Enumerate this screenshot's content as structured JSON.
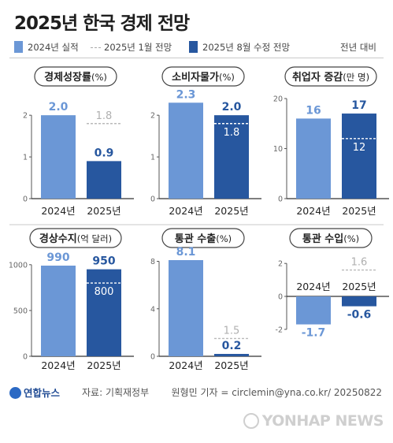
{
  "title": "2025년 한국 경제 전망",
  "legend": {
    "actual": "2024년 실적",
    "jan": "2025년 1월 전망",
    "aug": "2025년 8월 수정 전망",
    "note": "전년 대비"
  },
  "colors": {
    "actual": "#6b97d6",
    "aug": "#27579f",
    "jan_line": "#b9b9b9"
  },
  "chart_data": [
    {
      "type": "bar",
      "title": "경제성장률",
      "unit": "(%)",
      "categories": [
        "2024년",
        "2025년"
      ],
      "actual": 2.0,
      "revised": 0.9,
      "january": 1.8,
      "value_labels": [
        "2.0",
        "0.9"
      ],
      "january_label": "1.8",
      "ylim": [
        0,
        2.4
      ],
      "yticks": [
        0,
        1,
        2
      ]
    },
    {
      "type": "bar",
      "title": "소비자물가",
      "unit": "(%)",
      "categories": [
        "2024년",
        "2025년"
      ],
      "actual": 2.3,
      "revised": 2.0,
      "january": 1.8,
      "value_labels": [
        "2.3",
        "2.0"
      ],
      "january_label": "1.8",
      "ylim": [
        0,
        2.4
      ],
      "yticks": [
        0,
        1,
        2
      ]
    },
    {
      "type": "bar",
      "title": "취업자 증감",
      "unit": "(만 명)",
      "categories": [
        "2024년",
        "2025년"
      ],
      "actual": 16,
      "revised": 17,
      "january": 12,
      "value_labels": [
        "16",
        "17"
      ],
      "january_label": "12",
      "ylim": [
        0,
        20
      ],
      "yticks": [
        0,
        10,
        20
      ]
    },
    {
      "type": "bar",
      "title": "경상수지",
      "unit": "(억 달러)",
      "categories": [
        "2024년",
        "2025년"
      ],
      "actual": 990,
      "revised": 950,
      "january": 800,
      "value_labels": [
        "990",
        "950"
      ],
      "january_label": "800",
      "ylim": [
        0,
        1050
      ],
      "yticks": [
        0,
        500,
        1000
      ]
    },
    {
      "type": "bar",
      "title": "통관 수출",
      "unit": "(%)",
      "categories": [
        "2024년",
        "2025년"
      ],
      "actual": 8.1,
      "revised": 0.2,
      "january": 1.5,
      "value_labels": [
        "8.1",
        "0.2"
      ],
      "january_label": "1.5",
      "ylim": [
        0,
        8.1
      ],
      "yticks": [
        0,
        4,
        8
      ]
    },
    {
      "type": "bar",
      "title": "통관 수입",
      "unit": "(%)",
      "categories": [
        "2024년",
        "2025년"
      ],
      "actual": -1.7,
      "revised": -0.6,
      "january": 1.6,
      "value_labels": [
        "-1.7",
        "-0.6"
      ],
      "january_label": "1.6",
      "ylim": [
        -2.2,
        2.2
      ],
      "yticks": [
        -2,
        0,
        2
      ]
    }
  ],
  "footer": {
    "logo": "연합뉴스",
    "source": "자료: 기획재정부",
    "credit": "원형민 기자 = circlemin@yna.co.kr/ 20250822",
    "watermark": "YONHAP NEWS"
  }
}
